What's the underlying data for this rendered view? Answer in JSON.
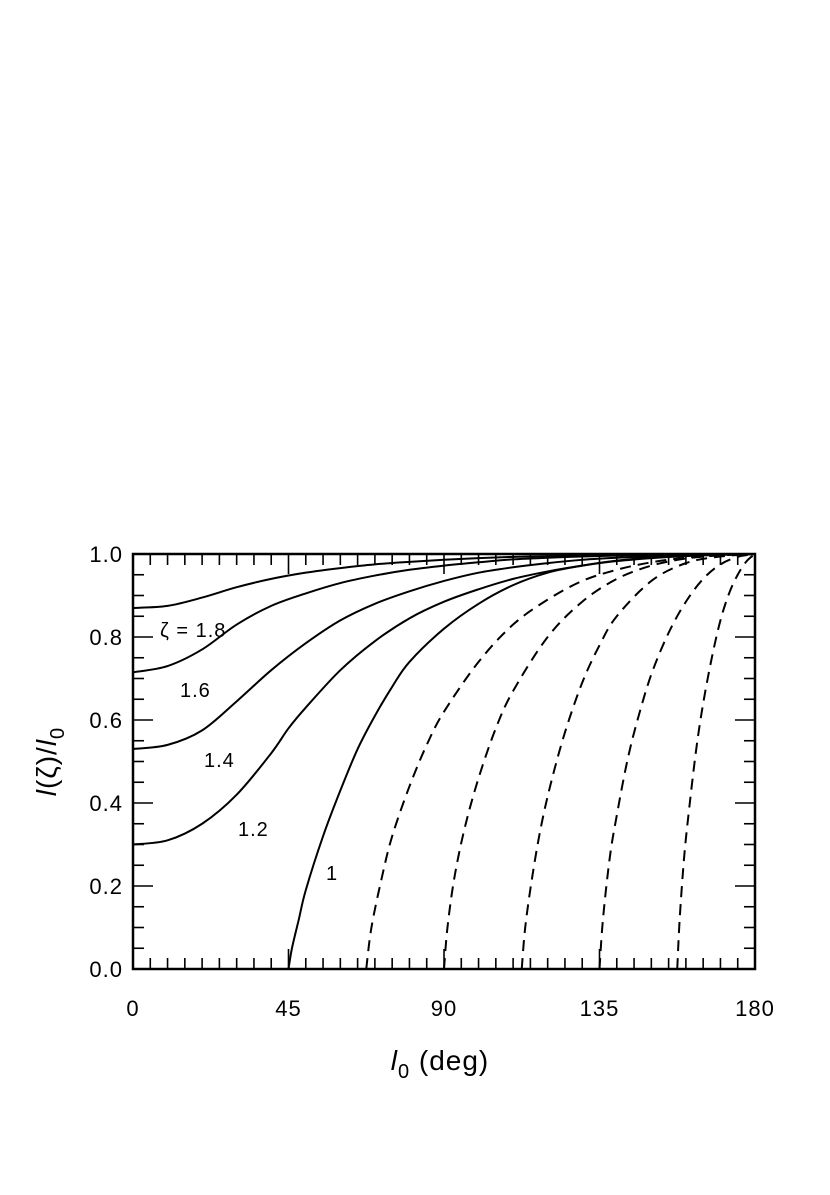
{
  "chart_data": {
    "type": "line",
    "xlabel": {
      "var": "l",
      "sub": "0",
      "rest": " (deg)"
    },
    "ylabel": {
      "var1": "l",
      "mid": "(ζ)/",
      "var2": "l",
      "sub": "0"
    },
    "xlim": [
      0,
      180
    ],
    "ylim": [
      0,
      1
    ],
    "xticks": [
      0,
      45,
      90,
      135,
      180
    ],
    "yticks": [
      0.0,
      0.2,
      0.4,
      0.6,
      0.8,
      1.0
    ],
    "xtick_labels": [
      "0",
      "45",
      "90",
      "135",
      "180"
    ],
    "ytick_labels": [
      "0.0",
      "0.2",
      "0.4",
      "0.6",
      "0.8",
      "1.0"
    ],
    "grid": false,
    "series": [
      {
        "label": "",
        "style": "solid",
        "x": [
          0,
          10,
          20,
          30,
          40,
          50,
          60,
          70,
          80,
          90,
          100,
          110,
          120,
          130,
          140,
          150,
          160,
          170,
          180
        ],
        "y": [
          0.87,
          0.875,
          0.895,
          0.92,
          0.94,
          0.955,
          0.966,
          0.975,
          0.981,
          0.986,
          0.99,
          0.993,
          0.995,
          0.997,
          0.998,
          0.999,
          1.0,
          1.0,
          1.0
        ]
      },
      {
        "label": "ζ = 1.8",
        "style": "solid",
        "x": [
          0,
          10,
          20,
          30,
          40,
          50,
          60,
          70,
          80,
          90,
          100,
          110,
          120,
          130,
          140,
          150,
          160,
          170,
          180
        ],
        "y": [
          0.715,
          0.73,
          0.77,
          0.83,
          0.875,
          0.905,
          0.93,
          0.948,
          0.962,
          0.972,
          0.98,
          0.987,
          0.991,
          0.994,
          0.996,
          0.998,
          0.999,
          1.0,
          1.0
        ]
      },
      {
        "label": "1.6",
        "style": "solid",
        "x": [
          0,
          10,
          20,
          30,
          40,
          50,
          60,
          70,
          80,
          90,
          100,
          110,
          120,
          130,
          140,
          150,
          160,
          170,
          180
        ],
        "y": [
          0.53,
          0.54,
          0.575,
          0.645,
          0.72,
          0.785,
          0.84,
          0.88,
          0.91,
          0.935,
          0.955,
          0.968,
          0.978,
          0.986,
          0.991,
          0.995,
          0.998,
          0.999,
          1.0
        ]
      },
      {
        "label": "1.4",
        "style": "solid",
        "x": [
          0,
          10,
          20,
          30,
          40,
          45,
          50,
          60,
          70,
          80,
          90,
          100,
          110,
          120,
          130,
          140,
          150,
          160,
          170,
          180
        ],
        "y": [
          0.3,
          0.31,
          0.35,
          0.42,
          0.52,
          0.58,
          0.63,
          0.72,
          0.79,
          0.845,
          0.885,
          0.915,
          0.94,
          0.958,
          0.972,
          0.983,
          0.99,
          0.995,
          0.998,
          1.0
        ]
      },
      {
        "label": "1.2",
        "style": "solid",
        "x": [
          45,
          46,
          48,
          50,
          55,
          60,
          65,
          70,
          75,
          80,
          90,
          100,
          110,
          120,
          130,
          140,
          150,
          160,
          170,
          180
        ],
        "y": [
          0.0,
          0.05,
          0.12,
          0.19,
          0.32,
          0.43,
          0.53,
          0.61,
          0.68,
          0.74,
          0.82,
          0.88,
          0.925,
          0.955,
          0.972,
          0.984,
          0.992,
          0.996,
          0.999,
          1.0
        ]
      },
      {
        "label": "1",
        "style": "dashed",
        "x": [
          67.5,
          69,
          72,
          75,
          80,
          85,
          90,
          100,
          110,
          120,
          130,
          140,
          150,
          160,
          170,
          180
        ],
        "y": [
          0.0,
          0.1,
          0.22,
          0.32,
          0.44,
          0.54,
          0.62,
          0.74,
          0.83,
          0.89,
          0.935,
          0.962,
          0.98,
          0.991,
          0.997,
          1.0
        ]
      },
      {
        "label": "",
        "style": "dashed",
        "x": [
          90,
          91,
          93,
          96,
          100,
          105,
          110,
          120,
          130,
          140,
          150,
          160,
          170,
          180
        ],
        "y": [
          0.0,
          0.1,
          0.22,
          0.34,
          0.46,
          0.58,
          0.67,
          0.8,
          0.885,
          0.94,
          0.972,
          0.989,
          0.997,
          1.0
        ]
      },
      {
        "label": "",
        "style": "dashed",
        "x": [
          112.5,
          113.5,
          115.5,
          118,
          121,
          125,
          130,
          135,
          140,
          150,
          160,
          170,
          180
        ],
        "y": [
          0.0,
          0.1,
          0.22,
          0.34,
          0.45,
          0.57,
          0.69,
          0.78,
          0.85,
          0.935,
          0.978,
          0.994,
          1.0
        ]
      },
      {
        "label": "",
        "style": "dashed",
        "x": [
          135,
          136,
          138,
          140,
          143,
          146,
          150,
          155,
          160,
          165,
          170,
          175,
          180
        ],
        "y": [
          0.0,
          0.12,
          0.27,
          0.37,
          0.5,
          0.6,
          0.71,
          0.81,
          0.885,
          0.94,
          0.975,
          0.993,
          1.0
        ]
      },
      {
        "label": "",
        "style": "dashed",
        "x": [
          157.5,
          158.2,
          159.5,
          161,
          163,
          165,
          167.5,
          170,
          172.5,
          175,
          177.5,
          180
        ],
        "y": [
          0.0,
          0.12,
          0.27,
          0.39,
          0.53,
          0.64,
          0.75,
          0.84,
          0.905,
          0.95,
          0.982,
          1.0
        ]
      }
    ]
  }
}
